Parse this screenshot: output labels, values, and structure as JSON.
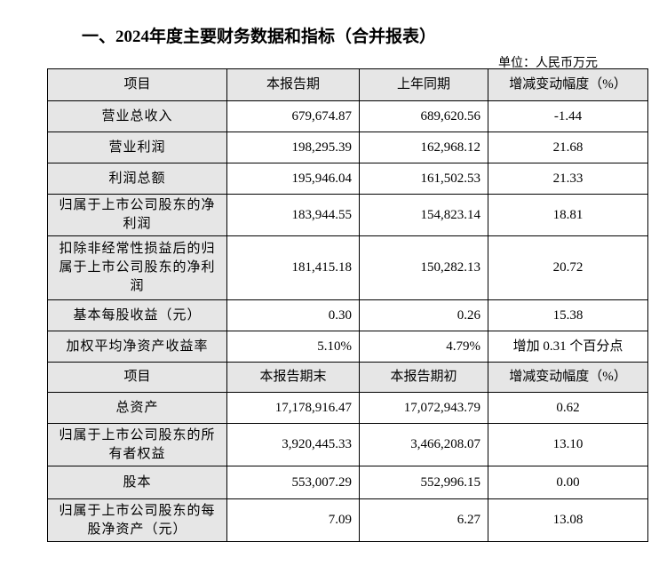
{
  "title": "一、2024年度主要财务数据和指标（合并报表）",
  "unit": "单位：人民币万元",
  "header1": [
    "项目",
    "本报告期",
    "上年同期",
    "增减变动幅度（%）"
  ],
  "rows1": [
    {
      "item": "营业总收入",
      "current": "679,674.87",
      "prior": "689,620.56",
      "change": "-1.44"
    },
    {
      "item": "营业利润",
      "current": "198,295.39",
      "prior": "162,968.12",
      "change": "21.68"
    },
    {
      "item": "利润总额",
      "current": "195,946.04",
      "prior": "161,502.53",
      "change": "21.33"
    },
    {
      "item": "归属于上市公司股东的净利润",
      "current": "183,944.55",
      "prior": "154,823.14",
      "change": "18.81"
    },
    {
      "item": "扣除非经常性损益后的归属于上市公司股东的净利润",
      "current": "181,415.18",
      "prior": "150,282.13",
      "change": "20.72"
    },
    {
      "item": "基本每股收益（元）",
      "current": "0.30",
      "prior": "0.26",
      "change": "15.38"
    },
    {
      "item": "加权平均净资产收益率",
      "current": "5.10%",
      "prior": "4.79%",
      "change": "增加 0.31 个百分点"
    }
  ],
  "header2": [
    "项目",
    "本报告期末",
    "本报告期初",
    "增减变动幅度（%）"
  ],
  "rows2": [
    {
      "item": "总资产",
      "current": "17,178,916.47",
      "prior": "17,072,943.79",
      "change": "0.62"
    },
    {
      "item": "归属于上市公司股东的所有者权益",
      "current": "3,920,445.33",
      "prior": "3,466,208.07",
      "change": "13.10"
    },
    {
      "item": "股本",
      "current": "553,007.29",
      "prior": "552,996.15",
      "change": "0.00"
    },
    {
      "item": "归属于上市公司股东的每股净资产（元）",
      "current": "7.09",
      "prior": "6.27",
      "change": "13.08"
    }
  ]
}
